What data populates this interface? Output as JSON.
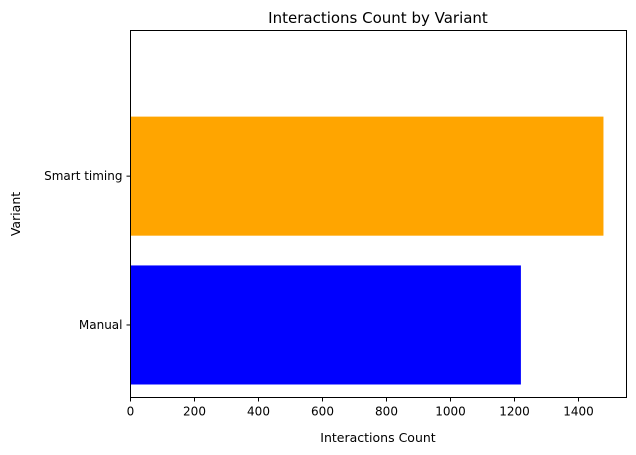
{
  "chart_data": {
    "type": "bar",
    "orientation": "horizontal",
    "title": "Interactions Count by Variant",
    "xlabel": "Interactions Count",
    "ylabel": "Variant",
    "categories": [
      "Manual",
      "Smart timing"
    ],
    "values": [
      1220,
      1478
    ],
    "colors": [
      "#0000ff",
      "#ffa500"
    ],
    "xlim": [
      0,
      1550
    ],
    "xticks": [
      0,
      200,
      400,
      600,
      800,
      1000,
      1200,
      1400
    ],
    "grid": false,
    "legend": "none"
  }
}
